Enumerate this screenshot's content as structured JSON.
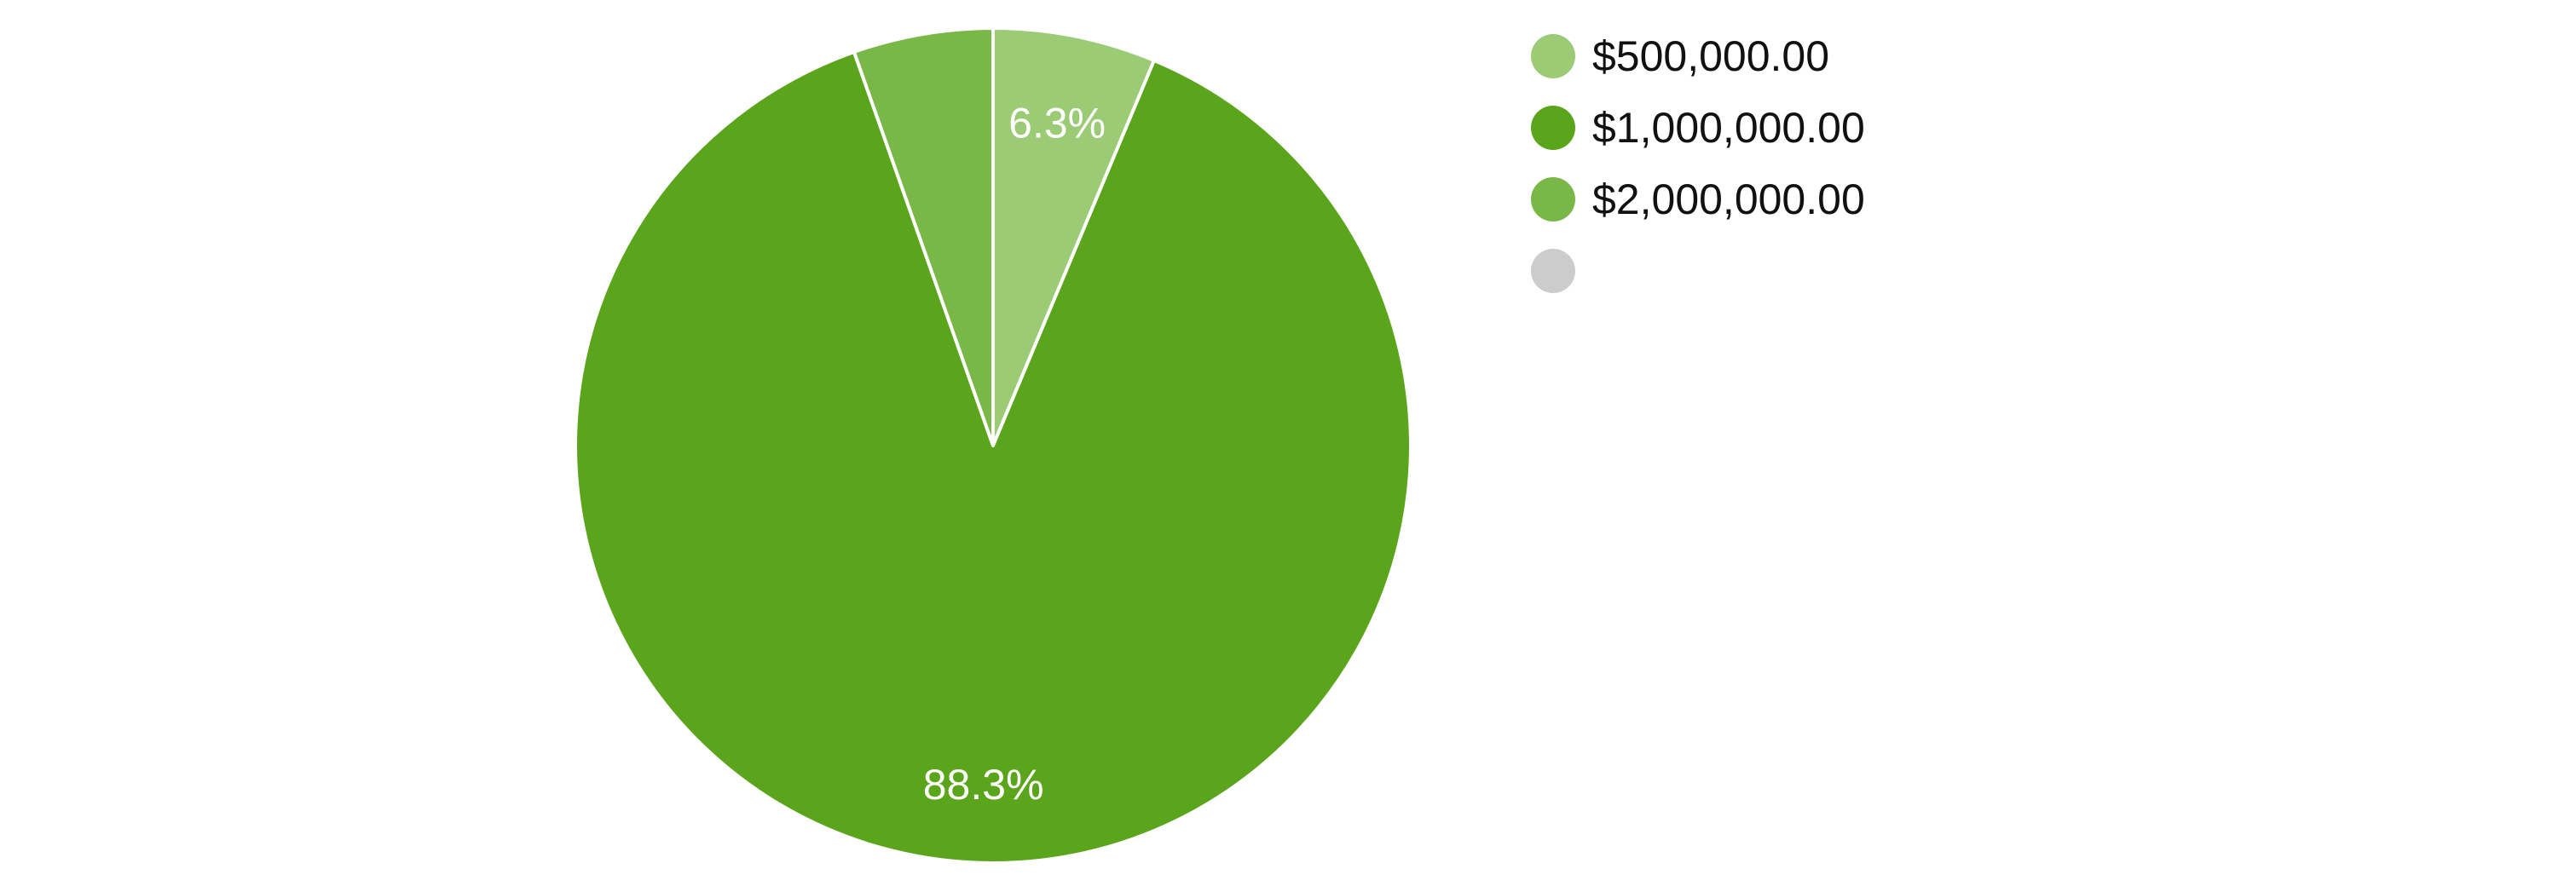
{
  "chart_data": {
    "type": "pie",
    "title": "",
    "slices": [
      {
        "label": "$500,000.00",
        "value": 6.3,
        "color": "#9ccb76",
        "data_label": "6.3%"
      },
      {
        "label": "$1,000,000.00",
        "value": 88.3,
        "color": "#5aa51b",
        "data_label": "88.3%"
      },
      {
        "label": "$2,000,000.00",
        "value": 5.4,
        "color": "#79b746",
        "data_label": ""
      },
      {
        "label": "",
        "value": 0,
        "color": "#cccccc",
        "data_label": ""
      }
    ],
    "legend_position": "right",
    "slice_border_color": "#ffffff"
  }
}
